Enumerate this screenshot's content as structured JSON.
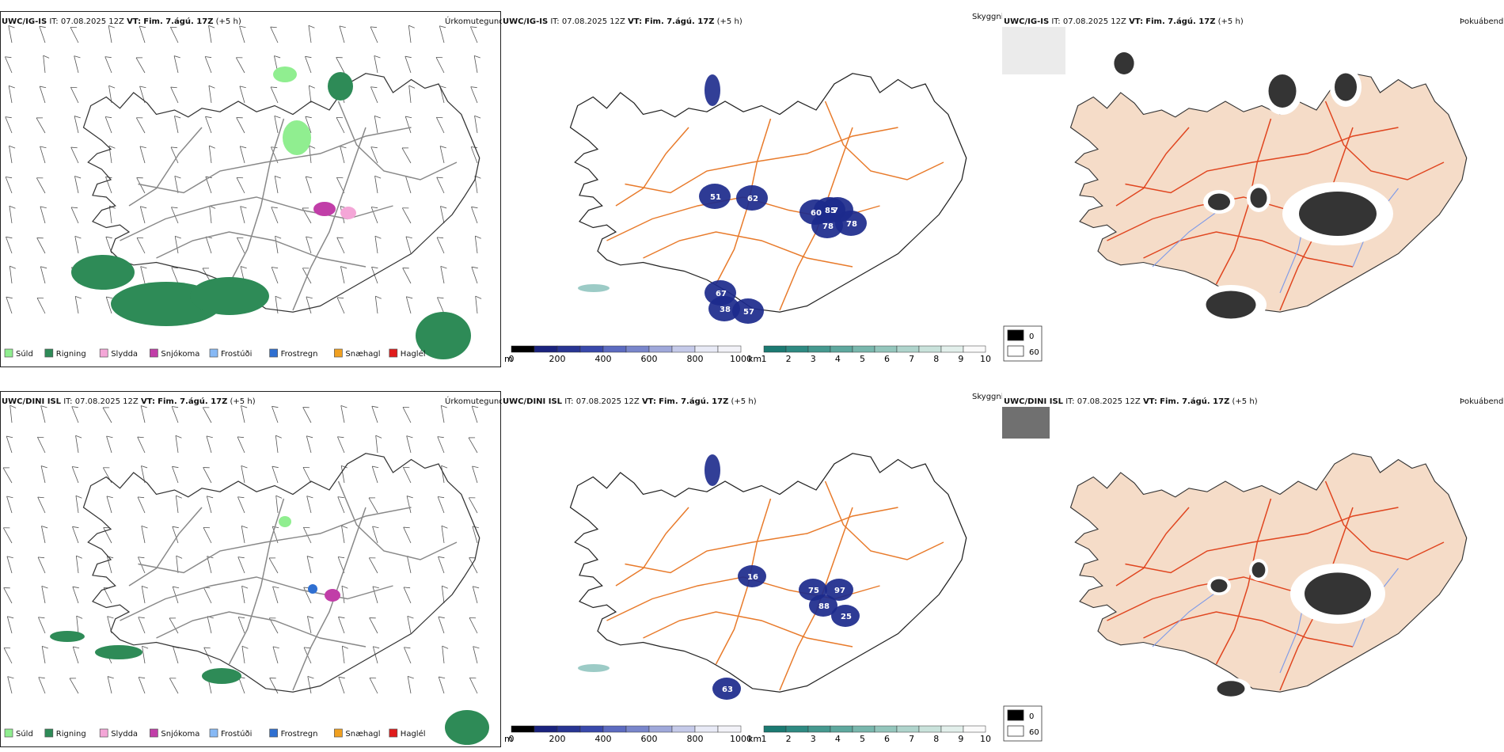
{
  "rows": [
    {
      "model": "UWC/IG-IS",
      "it_label": "IT:",
      "it_value": "07.08.2025 12Z",
      "vt_label": "VT:",
      "vt_value": "Fim. 7.ágú. 17Z",
      "offset": "(+5 h)",
      "precip": {
        "title": "Úrkomutegund",
        "legend": [
          {
            "label": "Súld",
            "color": "#90ee90"
          },
          {
            "label": "Rigning",
            "color": "#2e8b57"
          },
          {
            "label": "Slydda",
            "color": "#f4a6d7"
          },
          {
            "label": "Snjókoma",
            "color": "#c13ea8"
          },
          {
            "label": "Frostúði",
            "color": "#87b9f5"
          },
          {
            "label": "Frostregn",
            "color": "#2f6fd1"
          },
          {
            "label": "Snæhagl",
            "color": "#f0a020"
          },
          {
            "label": "Haglél",
            "color": "#e01b1b"
          }
        ]
      },
      "ceiling": {
        "title": "Skyggni",
        "labels": [
          "51",
          "62",
          "60",
          "85",
          "7",
          "78",
          "78",
          "67",
          "38",
          "57"
        ],
        "cbar_m": {
          "unit": "m",
          "ticks": [
            "0",
            "200",
            "400",
            "600",
            "800",
            "1000"
          ]
        },
        "cbar_km": {
          "unit": "km",
          "ticks": [
            "1",
            "2",
            "3",
            "4",
            "5",
            "6",
            "7",
            "8",
            "9",
            "10"
          ]
        }
      },
      "fog": {
        "title": "Þokuábendi",
        "legend": [
          {
            "label": "0",
            "color": "#000000"
          },
          {
            "label": "60",
            "color": "#ffffff"
          }
        ]
      }
    },
    {
      "model": "UWC/DINI ISL",
      "it_label": "IT:",
      "it_value": "07.08.2025 12Z",
      "vt_label": "VT:",
      "vt_value": "Fim. 7.ágú. 17Z",
      "offset": "(+5 h)",
      "precip": {
        "title": "Úrkomutegund",
        "legend": [
          {
            "label": "Súld",
            "color": "#90ee90"
          },
          {
            "label": "Rigning",
            "color": "#2e8b57"
          },
          {
            "label": "Slydda",
            "color": "#f4a6d7"
          },
          {
            "label": "Snjókoma",
            "color": "#c13ea8"
          },
          {
            "label": "Frostúði",
            "color": "#87b9f5"
          },
          {
            "label": "Frostregn",
            "color": "#2f6fd1"
          },
          {
            "label": "Snæhagl",
            "color": "#f0a020"
          },
          {
            "label": "Haglél",
            "color": "#e01b1b"
          }
        ]
      },
      "ceiling": {
        "title": "Skyggni",
        "labels": [
          "16",
          "75",
          "97",
          "88",
          "25",
          "63"
        ],
        "cbar_m": {
          "unit": "m",
          "ticks": [
            "0",
            "200",
            "400",
            "600",
            "800",
            "1000"
          ]
        },
        "cbar_km": {
          "unit": "km",
          "ticks": [
            "1",
            "2",
            "3",
            "4",
            "5",
            "6",
            "7",
            "8",
            "9",
            "10"
          ]
        }
      },
      "fog": {
        "title": "Þokuábendi",
        "legend": [
          {
            "label": "0",
            "color": "#000000"
          },
          {
            "label": "60",
            "color": "#ffffff"
          }
        ]
      }
    }
  ],
  "colors": {
    "land_fog": "#f5dcc8",
    "roads": "#e87a2a",
    "roads_fog": "#e0451f",
    "rivers": "#7f9be8",
    "ceiling_blue": "#1c2a8c",
    "ceiling_teal": "#5aa8a0"
  }
}
